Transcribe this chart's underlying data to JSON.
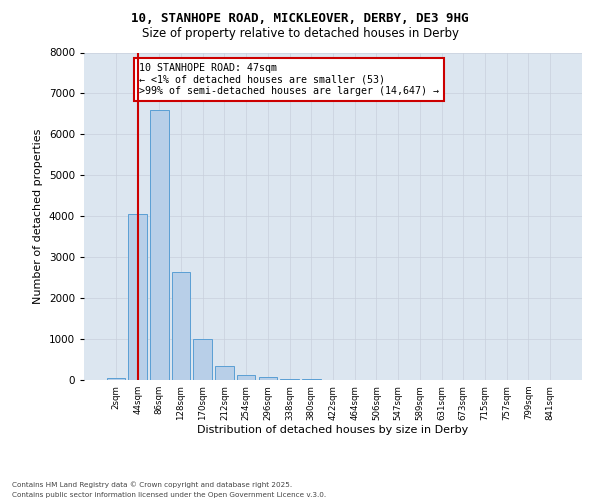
{
  "title1": "10, STANHOPE ROAD, MICKLEOVER, DERBY, DE3 9HG",
  "title2": "Size of property relative to detached houses in Derby",
  "xlabel": "Distribution of detached houses by size in Derby",
  "ylabel": "Number of detached properties",
  "categories": [
    "2sqm",
    "44sqm",
    "86sqm",
    "128sqm",
    "170sqm",
    "212sqm",
    "254sqm",
    "296sqm",
    "338sqm",
    "380sqm",
    "422sqm",
    "464sqm",
    "506sqm",
    "547sqm",
    "589sqm",
    "631sqm",
    "673sqm",
    "715sqm",
    "757sqm",
    "799sqm",
    "841sqm"
  ],
  "values": [
    53,
    4050,
    6600,
    2650,
    1000,
    330,
    120,
    75,
    30,
    15,
    0,
    0,
    0,
    0,
    0,
    0,
    0,
    0,
    0,
    0,
    0
  ],
  "bar_color": "#b8cfe8",
  "bar_edge_color": "#5a9fd4",
  "vline_color": "#cc0000",
  "vline_x": 1.0,
  "annotation_text": "10 STANHOPE ROAD: 47sqm\n← <1% of detached houses are smaller (53)\n>99% of semi-detached houses are larger (14,647) →",
  "annotation_box_color": "#cc0000",
  "ylim": [
    0,
    8000
  ],
  "yticks": [
    0,
    1000,
    2000,
    3000,
    4000,
    5000,
    6000,
    7000,
    8000
  ],
  "grid_color": "#c8d0dc",
  "bg_color": "#dce6f0",
  "footer1": "Contains HM Land Registry data © Crown copyright and database right 2025.",
  "footer2": "Contains public sector information licensed under the Open Government Licence v.3.0."
}
